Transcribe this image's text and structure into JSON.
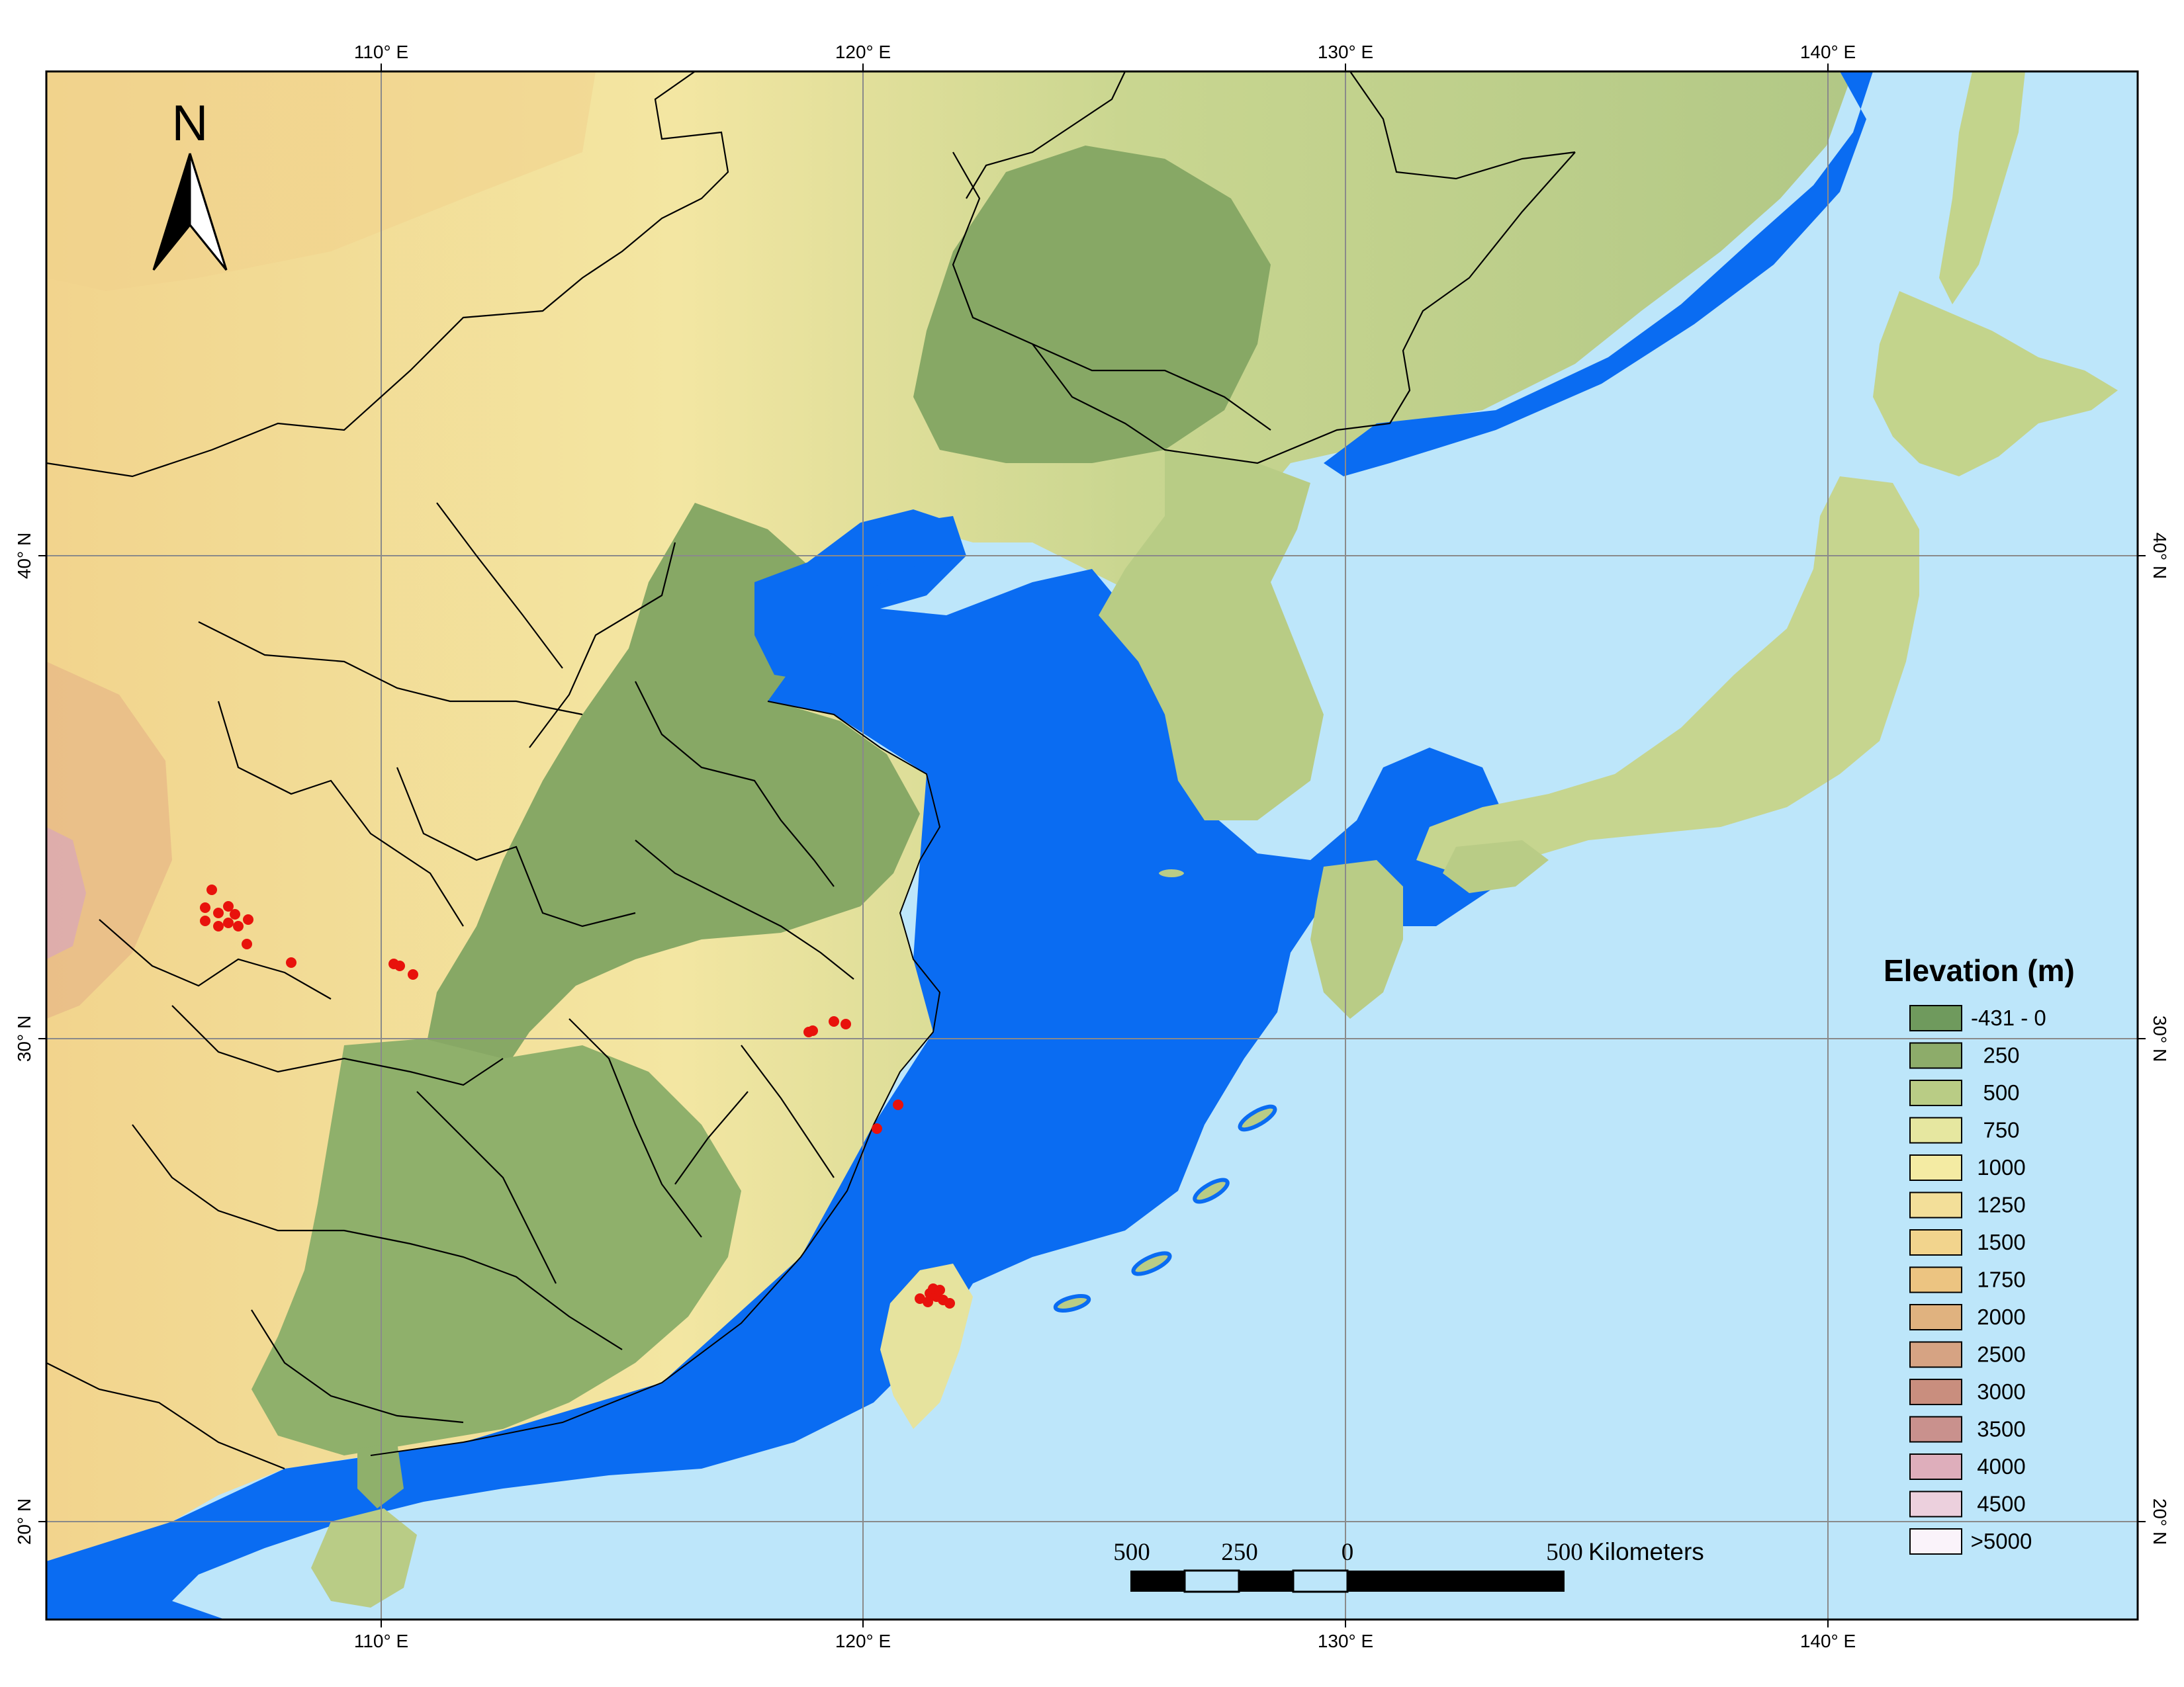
{
  "map": {
    "top_longitude_labels": [
      "110° E",
      "120° E",
      "130° E",
      "140° E"
    ],
    "bottom_longitude_labels": [
      "110° E",
      "120° E",
      "130° E",
      "140° E"
    ],
    "left_latitude_labels": [
      "40° N",
      "30° N",
      "20° N"
    ],
    "right_latitude_labels": [
      "40° N",
      "30° N",
      "20° N"
    ],
    "north_arrow_label": "N",
    "colors": {
      "deep_sea": "#bde6fa",
      "shelf_sea": "#0a6cf2",
      "lowland": "#87a865",
      "border_line": "#000000",
      "sample_point": "#e8120c"
    }
  },
  "legend": {
    "title": "Elevation (m)",
    "items": [
      {
        "label": "-431 - 0",
        "color": "#6f9a5d"
      },
      {
        "label": "250",
        "color": "#8dac6a"
      },
      {
        "label": "500",
        "color": "#b9cc85"
      },
      {
        "label": "750",
        "color": "#e6e7a0"
      },
      {
        "label": "1000",
        "color": "#f4eba3"
      },
      {
        "label": "1250",
        "color": "#f3df99"
      },
      {
        "label": "1500",
        "color": "#f2d48d"
      },
      {
        "label": "1750",
        "color": "#ecc481"
      },
      {
        "label": "2000",
        "color": "#e0b27f"
      },
      {
        "label": "2500",
        "color": "#d6a383"
      },
      {
        "label": "3000",
        "color": "#c98e7e"
      },
      {
        "label": "3500",
        "color": "#c9918d"
      },
      {
        "label": "4000",
        "color": "#deaebb"
      },
      {
        "label": "4500",
        "color": "#ecd0dd"
      },
      {
        "label": ">5000",
        "color": "#faf3fa"
      }
    ]
  },
  "scale_bar": {
    "labels": [
      "500",
      "250",
      "0",
      "500"
    ],
    "unit": "Kilometers"
  }
}
